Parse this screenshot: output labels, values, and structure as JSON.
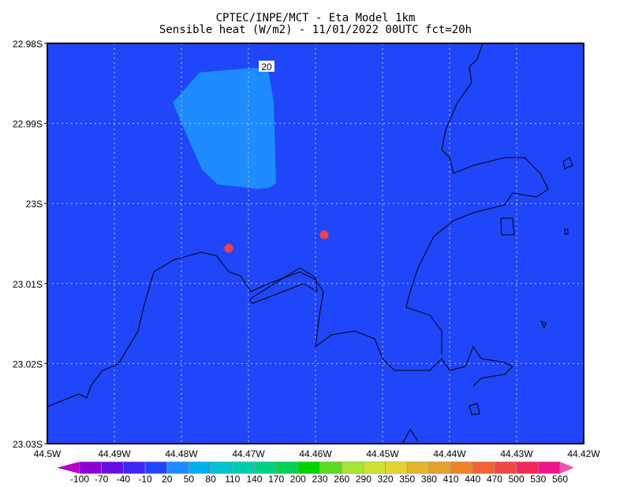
{
  "title_line1": "CPTEC/INPE/MCT -  Eta Model 1km",
  "title_line2": "Sensible heat (W/m2) - 11/01/2022 00UTC fct=20h",
  "map": {
    "background_color": "#2046fa",
    "region_color": "#1e8cff",
    "contour_label": "20",
    "point_color": "#ff4040",
    "y_labels": [
      "22.98S",
      "22.99S",
      "23S",
      "23.01S",
      "23.02S",
      "23.03S"
    ],
    "x_labels": [
      "44.5W",
      "44.49W",
      "44.48W",
      "44.47W",
      "44.46W",
      "44.45W",
      "44.44W",
      "44.43W",
      "44.42W"
    ]
  },
  "colorbar": {
    "labels": [
      "-100",
      "-70",
      "-40",
      "-10",
      "20",
      "50",
      "80",
      "110",
      "140",
      "170",
      "200",
      "230",
      "260",
      "290",
      "320",
      "350",
      "380",
      "410",
      "440",
      "470",
      "500",
      "530",
      "560"
    ],
    "colors": [
      "#8c00d4",
      "#6a0ee0",
      "#3c28f0",
      "#2046fa",
      "#1e8cff",
      "#00afef",
      "#00c3d2",
      "#00cdaf",
      "#00d282",
      "#00d250",
      "#00d200",
      "#5adc1e",
      "#a5e632",
      "#cde132",
      "#e6d232",
      "#e6b42d",
      "#e6a02d",
      "#f08228",
      "#f06432",
      "#f04646",
      "#f0285a",
      "#f0148c"
    ],
    "under_color": "#b400c8",
    "over_color": "#f050b4"
  }
}
